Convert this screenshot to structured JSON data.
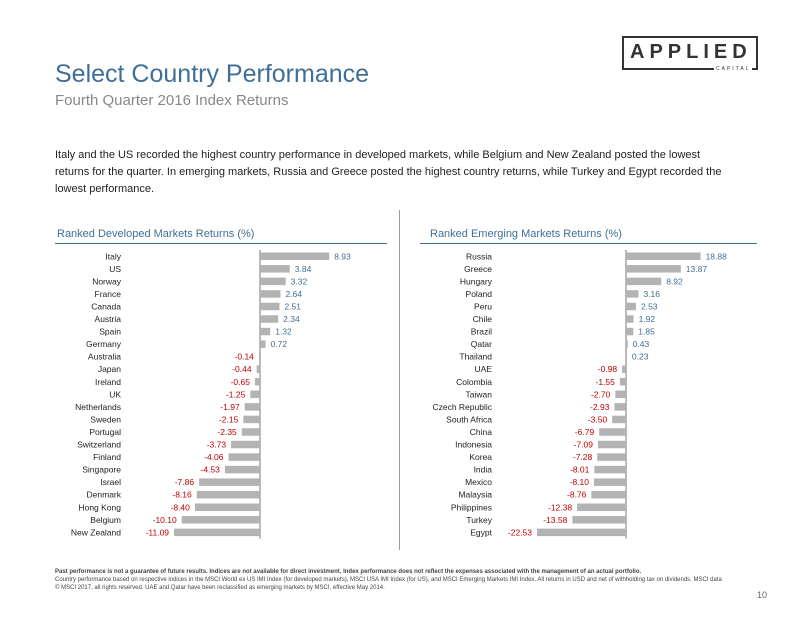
{
  "title": "Select Country Performance",
  "subtitle": "Fourth Quarter 2016 Index Returns",
  "logo": {
    "main": "APPLIED",
    "sub": "CAPITAL"
  },
  "intro": "Italy and the US recorded the highest country performance in developed markets, while Belgium and New Zealand posted the lowest returns for the quarter. In emerging markets, Russia and Greece posted the highest country returns, while Turkey and Egypt recorded the lowest performance.",
  "colors": {
    "bar": "#b3b3b3",
    "positive_label": "#3f6f99",
    "negative_label": "#c00000",
    "accent": "#3f6f99"
  },
  "chart_data": [
    {
      "type": "bar",
      "orientation": "horizontal",
      "title": "Ranked Developed Markets Returns (%)",
      "categories": [
        "Italy",
        "US",
        "Norway",
        "France",
        "Canada",
        "Austria",
        "Spain",
        "Germany",
        "Australia",
        "Japan",
        "Ireland",
        "UK",
        "Netherlands",
        "Sweden",
        "Portugal",
        "Switzerland",
        "Finland",
        "Singapore",
        "Israel",
        "Denmark",
        "Hong Kong",
        "Belgium",
        "New Zealand"
      ],
      "values": [
        8.93,
        3.84,
        3.32,
        2.64,
        2.51,
        2.34,
        1.32,
        0.72,
        -0.14,
        -0.44,
        -0.65,
        -1.25,
        -1.97,
        -2.15,
        -2.35,
        -3.73,
        -4.06,
        -4.53,
        -7.86,
        -8.16,
        -8.4,
        -10.1,
        -11.09
      ],
      "labels": [
        "8.93",
        "3.84",
        "3.32",
        "2.64",
        "2.51",
        "2.34",
        "1.32",
        "0.72",
        "-0.14",
        "-0.44",
        "-0.65",
        "-1.25",
        "-1.97",
        "-2.15",
        "-2.35",
        "-3.73",
        "-4.06",
        "-4.53",
        "-7.86",
        "-8.16",
        "-8.40",
        "-10.10",
        "-11.09"
      ],
      "grid": false,
      "legend": "none"
    },
    {
      "type": "bar",
      "orientation": "horizontal",
      "title": "Ranked Emerging Markets Returns (%)",
      "categories": [
        "Russia",
        "Greece",
        "Hungary",
        "Poland",
        "Peru",
        "Chile",
        "Brazil",
        "Qatar",
        "Thailand",
        "UAE",
        "Colombia",
        "Taiwan",
        "Czech Republic",
        "South Africa",
        "China",
        "Indonesia",
        "Korea",
        "India",
        "Mexico",
        "Malaysia",
        "Philippines",
        "Turkey",
        "Egypt"
      ],
      "values": [
        18.88,
        13.87,
        8.92,
        3.16,
        2.53,
        1.92,
        1.85,
        0.43,
        0.23,
        -0.98,
        -1.55,
        -2.7,
        -2.93,
        -3.5,
        -6.79,
        -7.09,
        -7.28,
        -8.01,
        -8.1,
        -8.76,
        -12.38,
        -13.58,
        -22.53
      ],
      "labels": [
        "18.88",
        "13.87",
        "8.92",
        "3.16",
        "2.53",
        "1.92",
        "1.85",
        "0.43",
        "0.23",
        "-0.98",
        "-1.55",
        "-2.70",
        "-2.93",
        "-3.50",
        "-6.79",
        "-7.09",
        "-7.28",
        "-8.01",
        "-8.10",
        "-8.76",
        "-12.38",
        "-13.58",
        "-22.53"
      ],
      "grid": false,
      "legend": "none"
    }
  ],
  "footer": {
    "bold": "Past performance is not a guarantee of future results. Indices are not available for direct investment. Index performance does not reflect the expenses associated with the management of an actual portfolio.",
    "text": "Country performance based on respective indices in the MSCI World ex US IMI Index (for developed markets), MSCI USA IMI Index (for US), and MSCI Emerging Markets IMI Index. All returns in USD and net of withholding tax on dividends. MSCI data © MSCI 2017, all rights reserved. UAE and Qatar have been reclassified as emerging markets by MSCI, effective May 2014."
  },
  "page_number": "10"
}
